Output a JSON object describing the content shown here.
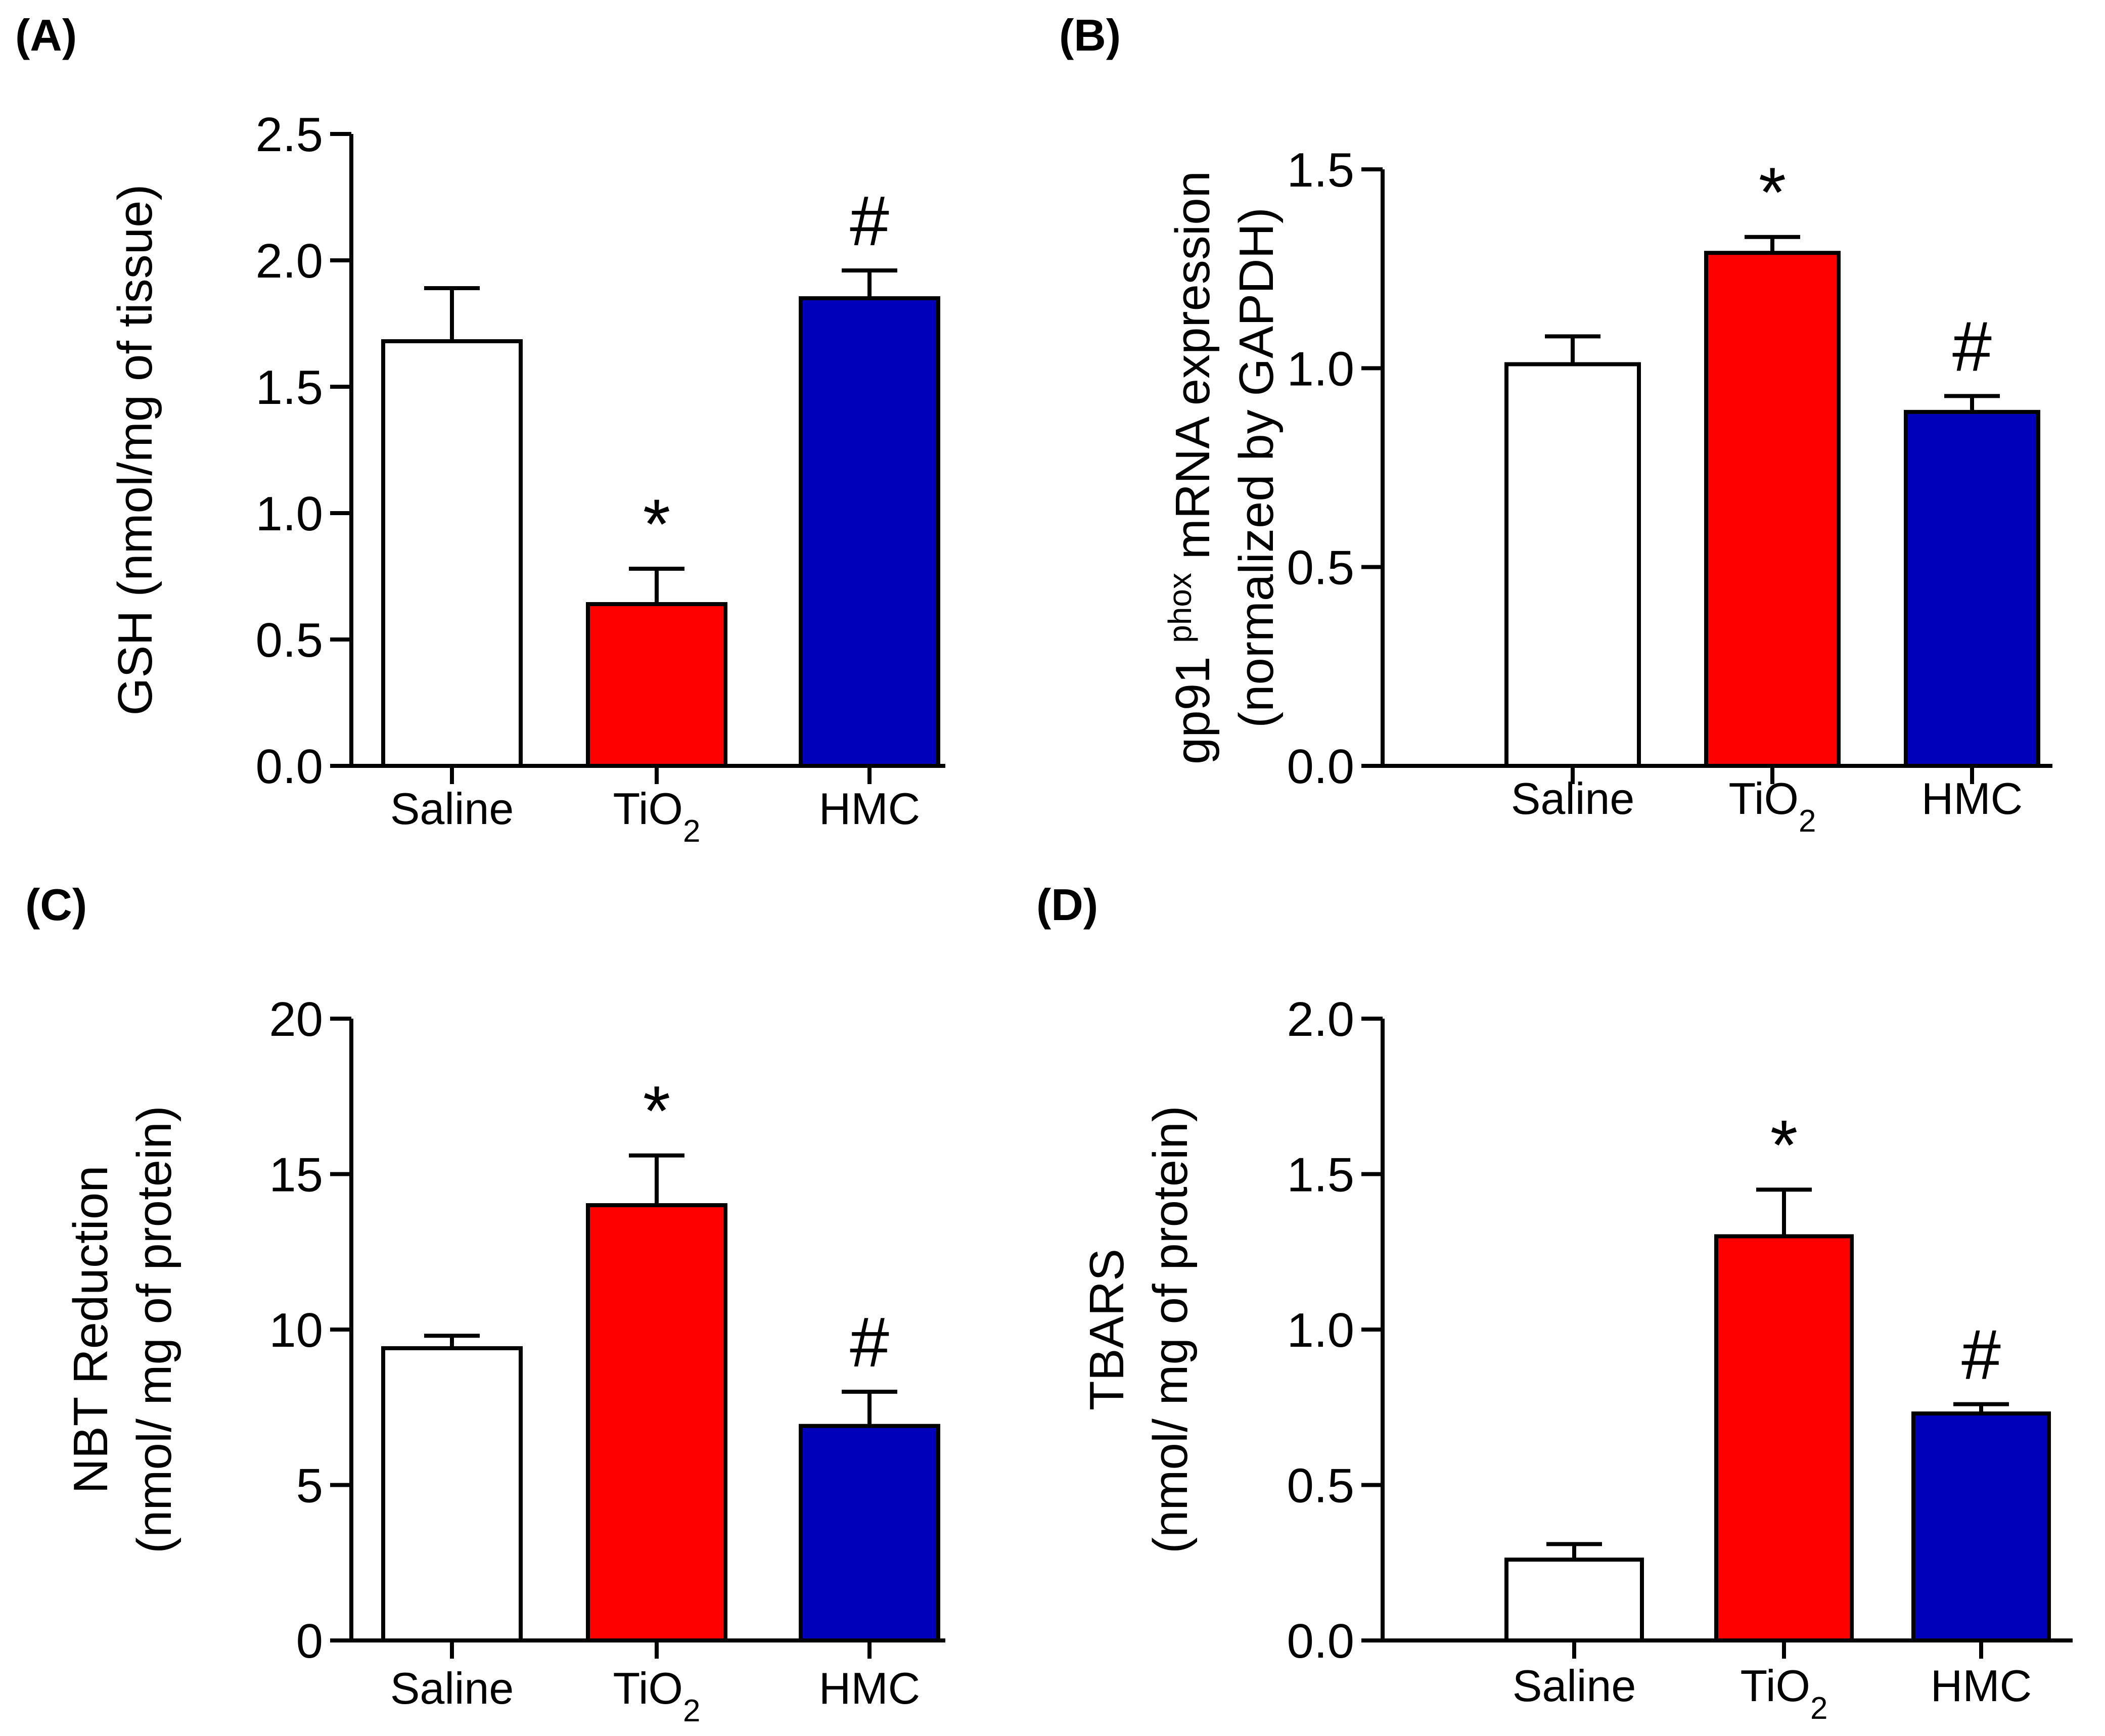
{
  "chart_data": [
    {
      "type": "bar",
      "panel": "(A)",
      "categories": [
        "Saline",
        "TiO2",
        "HMC"
      ],
      "values": [
        1.68,
        0.64,
        1.85
      ],
      "errors": [
        0.21,
        0.14,
        0.11
      ],
      "colors": [
        "#ffffff",
        "#ff0000",
        "#0000bb"
      ],
      "significance": [
        "",
        "*",
        "#"
      ],
      "title": "",
      "xlabel": "",
      "ylabel": [
        "GSH (nmol/mg of  tissue)"
      ],
      "ylim": [
        0,
        2.5
      ],
      "yticks": [
        "0.0",
        "0.5",
        "1.0",
        "1.5",
        "2.0",
        "2.5"
      ],
      "grid": false
    },
    {
      "type": "bar",
      "panel": "(B)",
      "categories": [
        "Saline",
        "TiO2",
        "HMC"
      ],
      "values": [
        1.01,
        1.29,
        0.89
      ],
      "errors": [
        0.07,
        0.04,
        0.04
      ],
      "colors": [
        "#ffffff",
        "#ff0000",
        "#0000bb"
      ],
      "significance": [
        "",
        "*",
        "#"
      ],
      "title": "",
      "xlabel": "",
      "ylabel": [
        "gp91 phox  mRNA expression",
        "(normalized by GAPDH)"
      ],
      "ylim": [
        0,
        1.5
      ],
      "yticks": [
        "0.0",
        "0.5",
        "1.0",
        "1.5"
      ],
      "grid": false
    },
    {
      "type": "bar",
      "panel": "(C)",
      "categories": [
        "Saline",
        "TiO2",
        "HMC"
      ],
      "values": [
        9.4,
        14.0,
        6.9
      ],
      "errors": [
        0.4,
        1.6,
        1.1
      ],
      "colors": [
        "#ffffff",
        "#ff0000",
        "#0000bb"
      ],
      "significance": [
        "",
        "*",
        "#"
      ],
      "title": "",
      "xlabel": "",
      "ylabel": [
        "NBT Reduction",
        "(nmol/ mg of protein)"
      ],
      "ylim": [
        0,
        20
      ],
      "yticks": [
        "0",
        "5",
        "10",
        "15",
        "20"
      ],
      "grid": false
    },
    {
      "type": "bar",
      "panel": "(D)",
      "categories": [
        "Saline",
        "TiO2",
        "HMC"
      ],
      "values": [
        0.26,
        1.3,
        0.73
      ],
      "errors": [
        0.05,
        0.15,
        0.03
      ],
      "colors": [
        "#ffffff",
        "#ff0000",
        "#0000bb"
      ],
      "significance": [
        "",
        "*",
        "#"
      ],
      "title": "",
      "xlabel": "",
      "ylabel": [
        "TBARS",
        "(nmol/ mg of protein)"
      ],
      "ylim": [
        0,
        2.0
      ],
      "yticks": [
        "0.0",
        "0.5",
        "1.0",
        "1.5",
        "2.0"
      ],
      "grid": false
    }
  ]
}
